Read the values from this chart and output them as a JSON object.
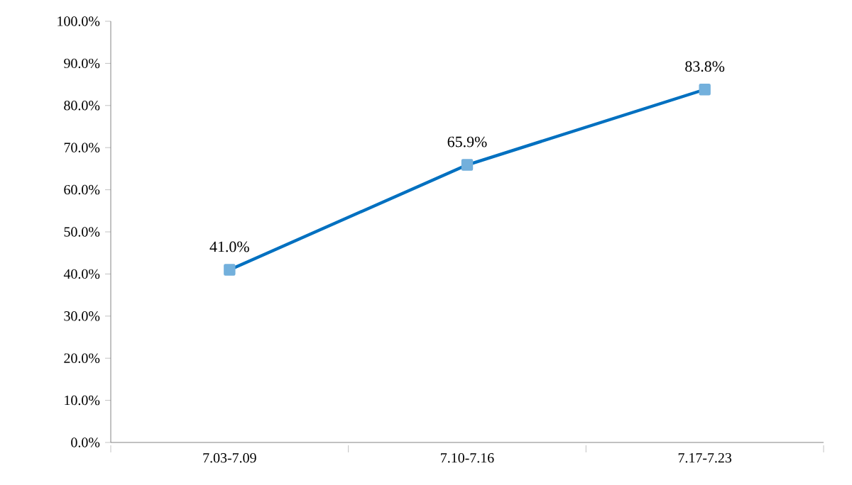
{
  "chart_data": {
    "type": "line",
    "categories": [
      "7.03-7.09",
      "7.10-7.16",
      "7.17-7.23"
    ],
    "series": [
      {
        "color": "#0070c0",
        "values": [
          41.0,
          65.9,
          83.8
        ],
        "value_labels": [
          "41.0%",
          "65.9%",
          "83.8%"
        ]
      }
    ],
    "marker": "square",
    "line_style": "solid",
    "grid": false,
    "ylim": [
      0,
      100
    ],
    "yticks": [
      {
        "value": 0,
        "label": "0.0%"
      },
      {
        "value": 10,
        "label": "10.0%"
      },
      {
        "value": 20,
        "label": "20.0%"
      },
      {
        "value": 30,
        "label": "30.0%"
      },
      {
        "value": 40,
        "label": "40.0%"
      },
      {
        "value": 50,
        "label": "50.0%"
      },
      {
        "value": 60,
        "label": "60.0%"
      },
      {
        "value": 70,
        "label": "70.0%"
      },
      {
        "value": 80,
        "label": "80.0%"
      },
      {
        "value": 90,
        "label": "90.0%"
      },
      {
        "value": 100,
        "label": "100.0%"
      }
    ]
  }
}
